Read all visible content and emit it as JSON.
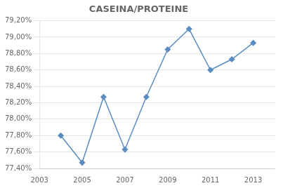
{
  "chart_data": {
    "type": "line",
    "title": "CASEINA/PROTEINE",
    "x": [
      2004,
      2005,
      2006,
      2007,
      2008,
      2009,
      2010,
      2011,
      2012,
      2013
    ],
    "values": [
      77.8,
      77.47,
      78.27,
      77.63,
      78.27,
      78.85,
      79.1,
      78.6,
      78.73,
      78.93
    ],
    "color": "#5b8dc0",
    "marker": "diamond",
    "xlim": [
      2003,
      2014
    ],
    "xticks": [
      2003,
      2005,
      2007,
      2009,
      2011,
      2013
    ],
    "ylim": [
      77.4,
      79.2
    ],
    "yticks": [
      {
        "value": 77.4,
        "label": "77,40%"
      },
      {
        "value": 77.6,
        "label": "77,60%"
      },
      {
        "value": 77.8,
        "label": "77,80%"
      },
      {
        "value": 78.0,
        "label": "78,00%"
      },
      {
        "value": 78.2,
        "label": "78,20%"
      },
      {
        "value": 78.4,
        "label": "78,40%"
      },
      {
        "value": 78.6,
        "label": "78,60%"
      },
      {
        "value": 78.8,
        "label": "78,80%"
      },
      {
        "value": 79.0,
        "label": "79,00%"
      },
      {
        "value": 79.2,
        "label": "79,20%"
      }
    ],
    "grid": "y"
  }
}
